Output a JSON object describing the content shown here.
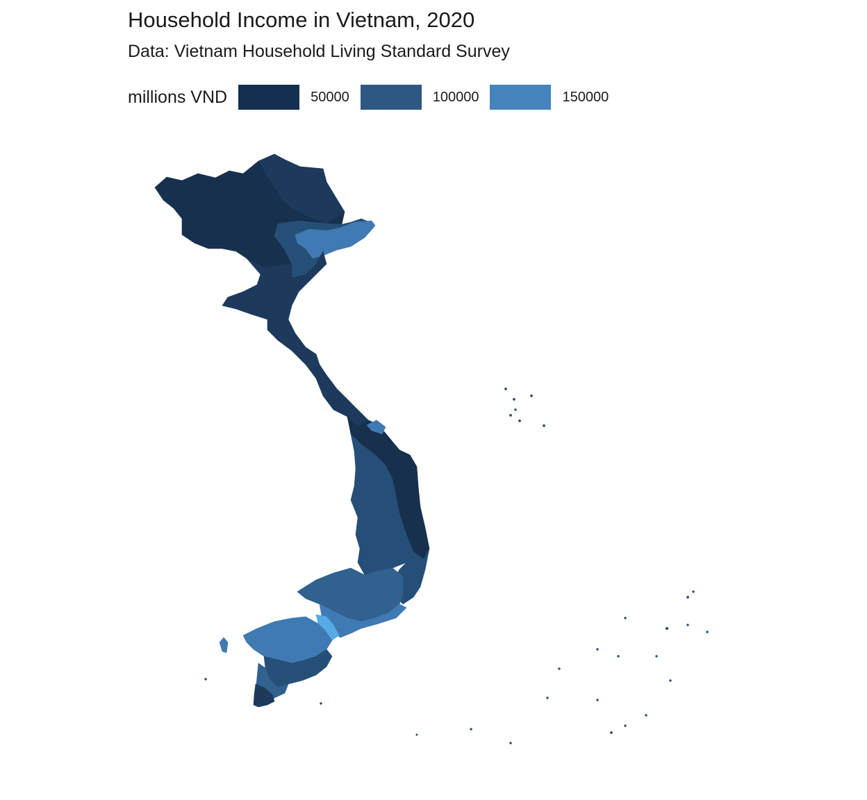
{
  "title": "Household Income in Vietnam, 2020",
  "subtitle": "Data: Vietnam Household Living Standard Survey",
  "legend": {
    "title": "millions VND",
    "items": [
      {
        "label": "50000",
        "color": "#15304f"
      },
      {
        "label": "100000",
        "color": "#2c5882"
      },
      {
        "label": "150000",
        "color": "#4584bd"
      }
    ]
  },
  "colors": {
    "very_low": "#16304e",
    "low": "#1d3a5c",
    "mid": "#264f77",
    "mid_high": "#30618f",
    "high": "#3f7ab3",
    "very_high": "#56abe6"
  }
}
